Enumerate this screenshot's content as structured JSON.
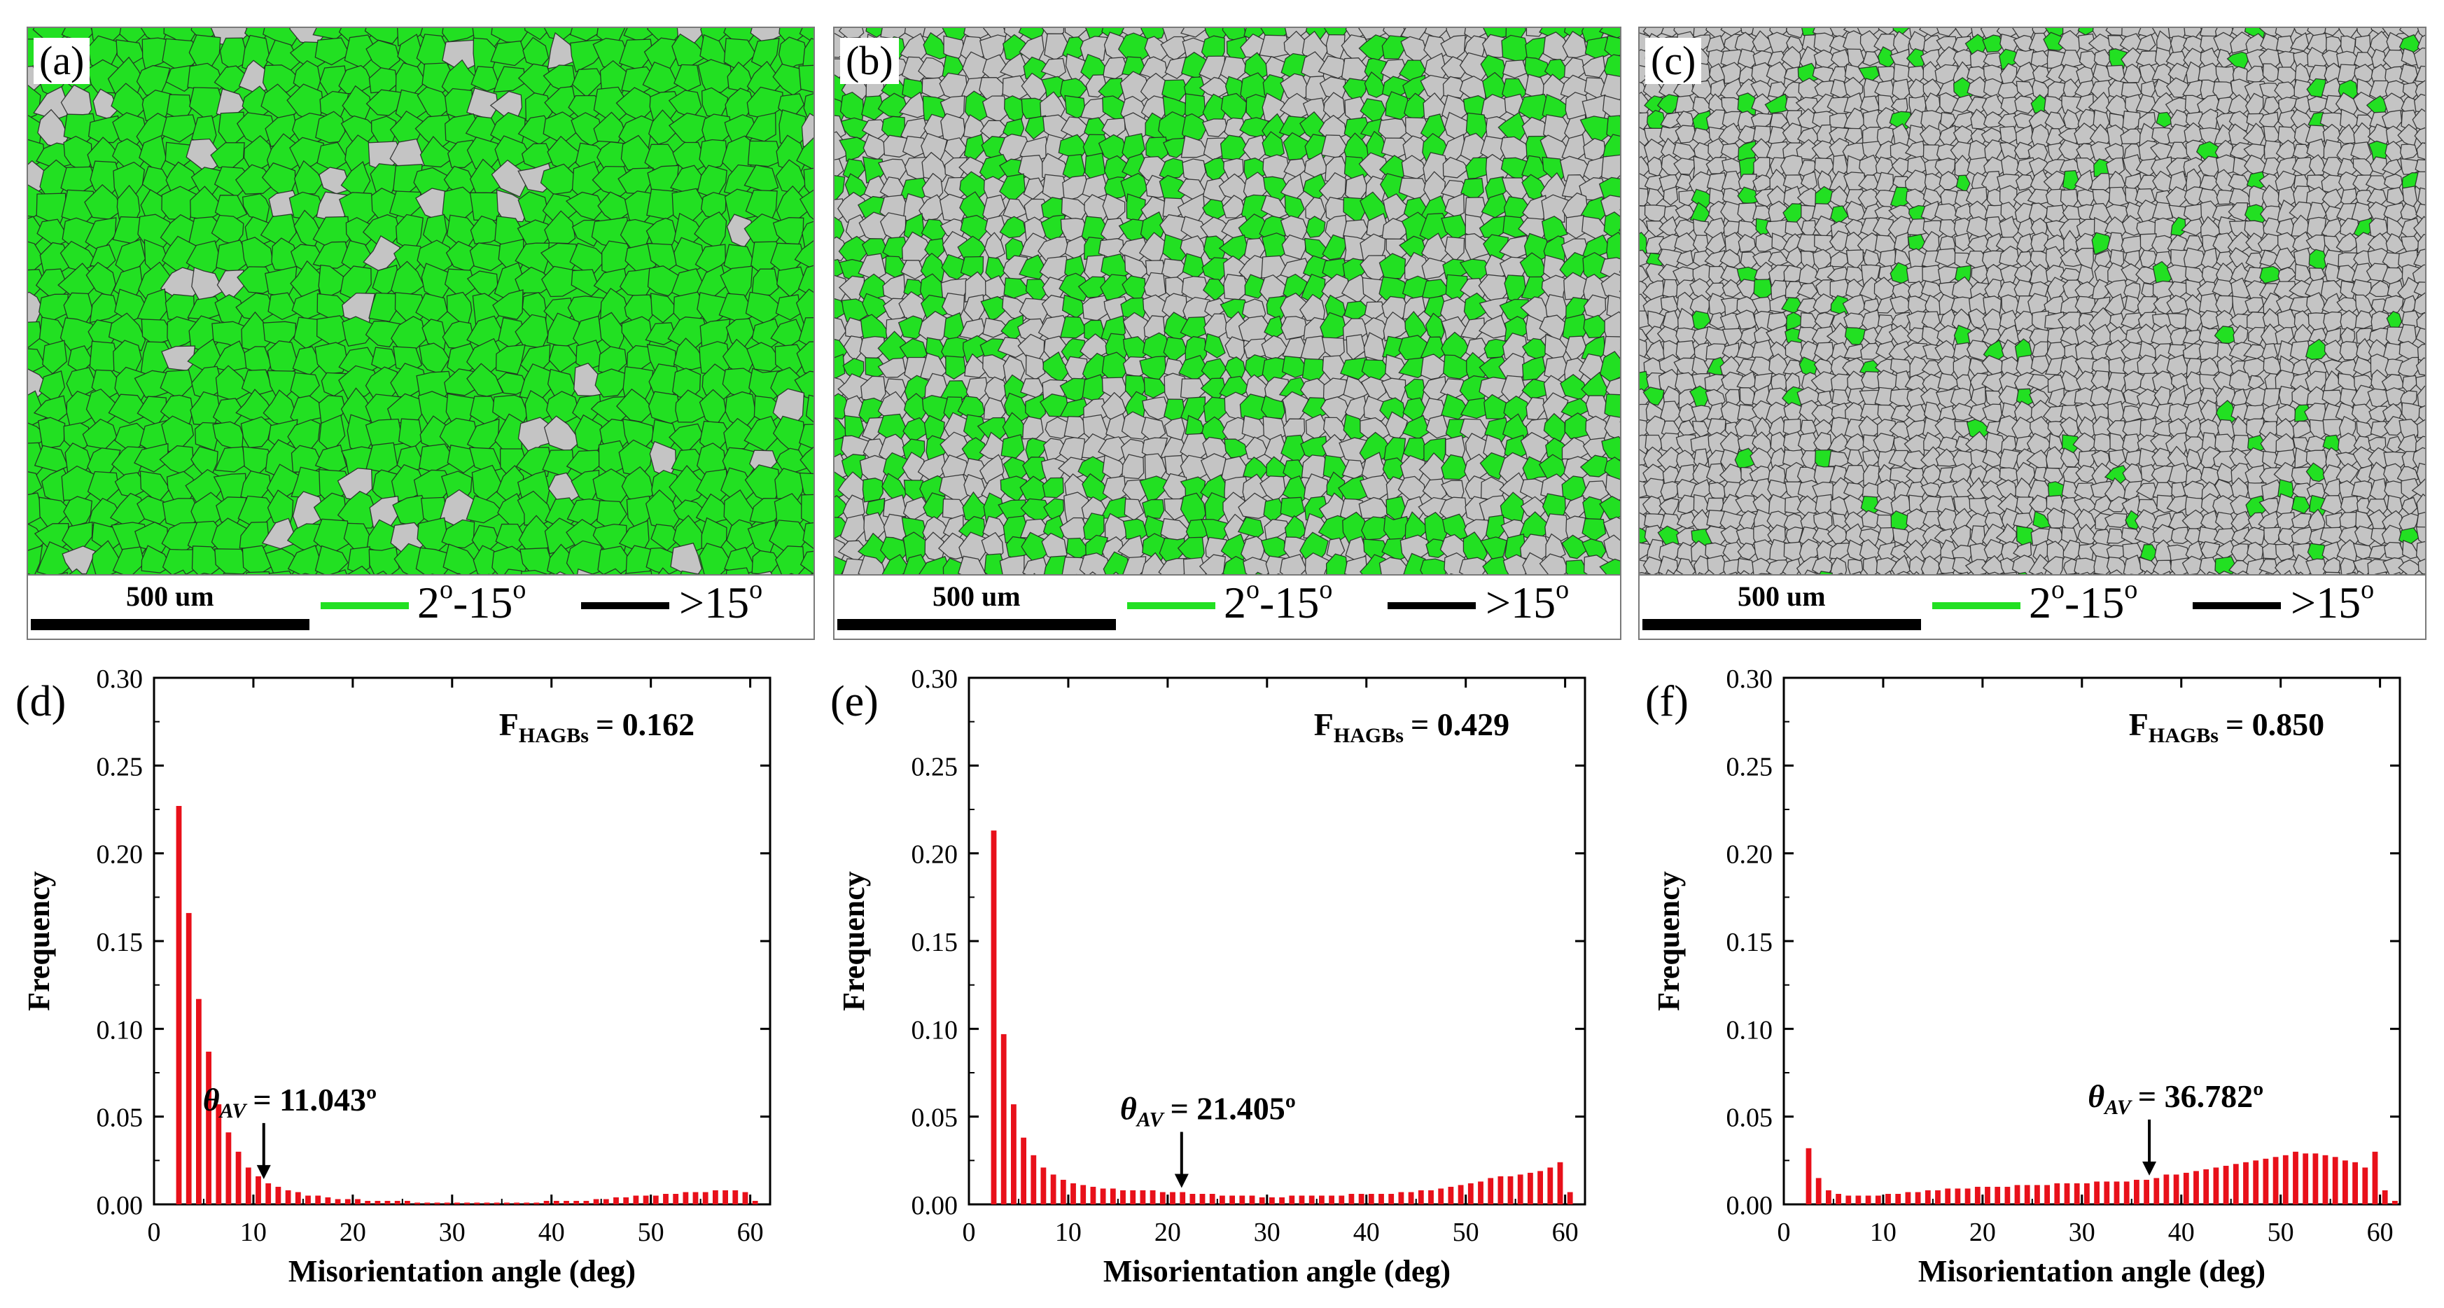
{
  "micrographs": [
    {
      "label": "(a)",
      "scale_text": "500 um",
      "legend_low": "2",
      "legend_low_mid": "-15",
      "legend_high_prefix": ">15",
      "degree_mark": "o",
      "green_density": 0.92,
      "grain_density": 0.35
    },
    {
      "label": "(b)",
      "scale_text": "500 um",
      "legend_low": "2",
      "legend_low_mid": "-15",
      "legend_high_prefix": ">15",
      "degree_mark": "o",
      "green_density": 0.45,
      "grain_density": 0.7
    },
    {
      "label": "(c)",
      "scale_text": "500 um",
      "legend_low": "2",
      "legend_low_mid": "-15",
      "legend_high_prefix": ">15",
      "degree_mark": "o",
      "green_density": 0.06,
      "grain_density": 1.0
    }
  ],
  "colors": {
    "green": "#22e022",
    "grain": "#c4c4c4",
    "boundary": "#222222",
    "bar": "#e8101a",
    "black": "#000000"
  },
  "chart_data": [
    {
      "panel": "(d)",
      "type": "bar",
      "xlabel": "Misorientation angle (deg)",
      "ylabel": "Frequency",
      "xlim": [
        0,
        62
      ],
      "ylim": [
        0,
        0.3
      ],
      "xticks": [
        0,
        10,
        20,
        30,
        40,
        50,
        60
      ],
      "yticks": [
        0.0,
        0.05,
        0.1,
        0.15,
        0.2,
        0.25,
        0.3
      ],
      "ytick_labels": [
        "0.00",
        "0.05",
        "0.10",
        "0.15",
        "0.20",
        "0.25",
        "0.30"
      ],
      "fhagb_label": "F",
      "fhagb_sub": "HAGBs",
      "fhagb_value": "= 0.162",
      "theta_label": "θ",
      "theta_sub": "AV",
      "theta_value": "= 11.043º",
      "theta_x": 11.043,
      "x": [
        2.5,
        3.5,
        4.5,
        5.5,
        6.5,
        7.5,
        8.5,
        9.5,
        10.5,
        11.5,
        12.5,
        13.5,
        14.5,
        15.5,
        16.5,
        17.5,
        18.5,
        19.5,
        20.5,
        21.5,
        22.5,
        23.5,
        24.5,
        25.5,
        26.5,
        27.5,
        28.5,
        29.5,
        30.5,
        31.5,
        32.5,
        33.5,
        34.5,
        35.5,
        36.5,
        37.5,
        38.5,
        39.5,
        40.5,
        41.5,
        42.5,
        43.5,
        44.5,
        45.5,
        46.5,
        47.5,
        48.5,
        49.5,
        50.5,
        51.5,
        52.5,
        53.5,
        54.5,
        55.5,
        56.5,
        57.5,
        58.5,
        59.5,
        60.5
      ],
      "values": [
        0.227,
        0.166,
        0.117,
        0.087,
        0.057,
        0.041,
        0.03,
        0.021,
        0.016,
        0.012,
        0.01,
        0.008,
        0.007,
        0.005,
        0.005,
        0.004,
        0.003,
        0.003,
        0.003,
        0.002,
        0.002,
        0.002,
        0.002,
        0.002,
        0.001,
        0.001,
        0.001,
        0.001,
        0.001,
        0.001,
        0.001,
        0.001,
        0.001,
        0.001,
        0.001,
        0.001,
        0.001,
        0.002,
        0.002,
        0.002,
        0.002,
        0.002,
        0.003,
        0.003,
        0.004,
        0.004,
        0.005,
        0.005,
        0.005,
        0.006,
        0.006,
        0.007,
        0.007,
        0.007,
        0.008,
        0.008,
        0.008,
        0.007,
        0.002
      ]
    },
    {
      "panel": "(e)",
      "type": "bar",
      "xlabel": "Misorientation angle (deg)",
      "ylabel": "Frequency",
      "xlim": [
        0,
        62
      ],
      "ylim": [
        0,
        0.3
      ],
      "xticks": [
        0,
        10,
        20,
        30,
        40,
        50,
        60
      ],
      "yticks": [
        0.0,
        0.05,
        0.1,
        0.15,
        0.2,
        0.25,
        0.3
      ],
      "ytick_labels": [
        "0.00",
        "0.05",
        "0.10",
        "0.15",
        "0.20",
        "0.25",
        "0.30"
      ],
      "fhagb_label": "F",
      "fhagb_sub": "HAGBs",
      "fhagb_value": "= 0.429",
      "theta_label": "θ",
      "theta_sub": "AV",
      "theta_value": "= 21.405º",
      "theta_x": 21.405,
      "x": [
        2.5,
        3.5,
        4.5,
        5.5,
        6.5,
        7.5,
        8.5,
        9.5,
        10.5,
        11.5,
        12.5,
        13.5,
        14.5,
        15.5,
        16.5,
        17.5,
        18.5,
        19.5,
        20.5,
        21.5,
        22.5,
        23.5,
        24.5,
        25.5,
        26.5,
        27.5,
        28.5,
        29.5,
        30.5,
        31.5,
        32.5,
        33.5,
        34.5,
        35.5,
        36.5,
        37.5,
        38.5,
        39.5,
        40.5,
        41.5,
        42.5,
        43.5,
        44.5,
        45.5,
        46.5,
        47.5,
        48.5,
        49.5,
        50.5,
        51.5,
        52.5,
        53.5,
        54.5,
        55.5,
        56.5,
        57.5,
        58.5,
        59.5,
        60.5
      ],
      "values": [
        0.213,
        0.097,
        0.057,
        0.038,
        0.028,
        0.021,
        0.017,
        0.014,
        0.012,
        0.011,
        0.01,
        0.009,
        0.009,
        0.008,
        0.008,
        0.008,
        0.008,
        0.007,
        0.007,
        0.007,
        0.006,
        0.006,
        0.006,
        0.005,
        0.005,
        0.005,
        0.005,
        0.004,
        0.004,
        0.004,
        0.005,
        0.005,
        0.005,
        0.005,
        0.005,
        0.005,
        0.006,
        0.006,
        0.006,
        0.006,
        0.006,
        0.007,
        0.007,
        0.008,
        0.008,
        0.009,
        0.01,
        0.011,
        0.012,
        0.013,
        0.015,
        0.016,
        0.016,
        0.017,
        0.018,
        0.019,
        0.021,
        0.024,
        0.007
      ]
    },
    {
      "panel": "(f)",
      "type": "bar",
      "xlabel": "Misorientation angle (deg)",
      "ylabel": "Frequency",
      "xlim": [
        0,
        62
      ],
      "ylim": [
        0,
        0.3
      ],
      "xticks": [
        0,
        10,
        20,
        30,
        40,
        50,
        60
      ],
      "yticks": [
        0.0,
        0.05,
        0.1,
        0.15,
        0.2,
        0.25,
        0.3
      ],
      "ytick_labels": [
        "0.00",
        "0.05",
        "0.10",
        "0.15",
        "0.20",
        "0.25",
        "0.30"
      ],
      "fhagb_label": "F",
      "fhagb_sub": "HAGBs",
      "fhagb_value": "= 0.850",
      "theta_label": "θ",
      "theta_sub": "AV",
      "theta_value": "= 36.782º",
      "theta_x": 36.782,
      "x": [
        2.5,
        3.5,
        4.5,
        5.5,
        6.5,
        7.5,
        8.5,
        9.5,
        10.5,
        11.5,
        12.5,
        13.5,
        14.5,
        15.5,
        16.5,
        17.5,
        18.5,
        19.5,
        20.5,
        21.5,
        22.5,
        23.5,
        24.5,
        25.5,
        26.5,
        27.5,
        28.5,
        29.5,
        30.5,
        31.5,
        32.5,
        33.5,
        34.5,
        35.5,
        36.5,
        37.5,
        38.5,
        39.5,
        40.5,
        41.5,
        42.5,
        43.5,
        44.5,
        45.5,
        46.5,
        47.5,
        48.5,
        49.5,
        50.5,
        51.5,
        52.5,
        53.5,
        54.5,
        55.5,
        56.5,
        57.5,
        58.5,
        59.5,
        60.5,
        61.5
      ],
      "values": [
        0.032,
        0.015,
        0.008,
        0.006,
        0.005,
        0.005,
        0.005,
        0.005,
        0.006,
        0.006,
        0.007,
        0.007,
        0.008,
        0.008,
        0.009,
        0.009,
        0.009,
        0.01,
        0.01,
        0.01,
        0.01,
        0.011,
        0.011,
        0.011,
        0.011,
        0.012,
        0.012,
        0.012,
        0.012,
        0.013,
        0.013,
        0.013,
        0.013,
        0.014,
        0.014,
        0.015,
        0.017,
        0.017,
        0.018,
        0.019,
        0.02,
        0.021,
        0.022,
        0.023,
        0.024,
        0.025,
        0.026,
        0.027,
        0.028,
        0.03,
        0.029,
        0.029,
        0.028,
        0.027,
        0.025,
        0.024,
        0.021,
        0.03,
        0.008,
        0.002
      ]
    }
  ]
}
